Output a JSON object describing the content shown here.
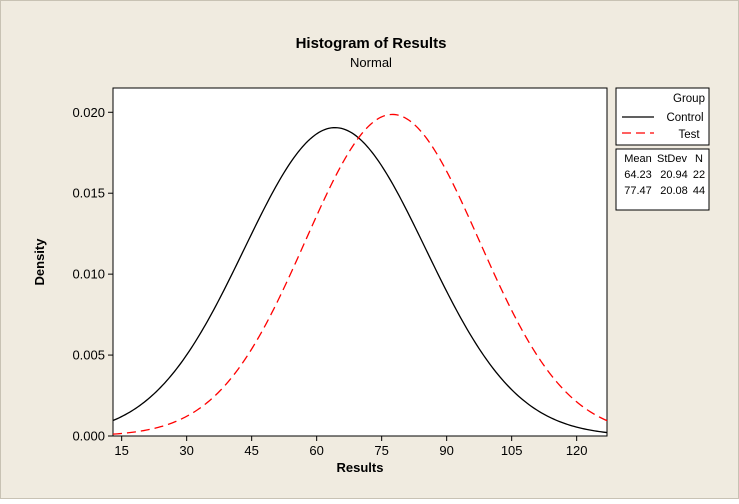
{
  "chart_data": {
    "type": "line",
    "title": "Histogram of Results",
    "subtitle": "Normal",
    "xlabel": "Results",
    "ylabel": "Density",
    "xlim": [
      13,
      127
    ],
    "ylim": [
      0,
      0.0215
    ],
    "x_ticks": [
      15,
      30,
      45,
      60,
      75,
      90,
      105,
      120
    ],
    "y_ticks": [
      0.0,
      0.005,
      0.01,
      0.015,
      0.02
    ],
    "y_tick_labels": [
      "0.000",
      "0.005",
      "0.010",
      "0.015",
      "0.020"
    ],
    "grid": false,
    "legend": {
      "placement": "right",
      "title": "Group",
      "entries": [
        {
          "name": "Control",
          "color": "#000000",
          "style": "solid"
        },
        {
          "name": "Test",
          "color": "#ff0000",
          "style": "dashed"
        }
      ]
    },
    "stats_table": {
      "headers": [
        "Mean",
        "StDev",
        "N"
      ],
      "rows": [
        [
          "64.23",
          "20.94",
          "22"
        ],
        [
          "77.47",
          "20.08",
          "44"
        ]
      ]
    },
    "series": [
      {
        "name": "Control",
        "distribution": "normal",
        "mean": 64.23,
        "stdev": 20.94,
        "n": 22,
        "color": "#000000",
        "style": "solid"
      },
      {
        "name": "Test",
        "distribution": "normal",
        "mean": 77.47,
        "stdev": 20.08,
        "n": 44,
        "color": "#ff0000",
        "style": "dashed"
      }
    ],
    "colors": {
      "background": "#f0ebe0",
      "plot_area": "#ffffff",
      "axis": "#000000"
    }
  }
}
